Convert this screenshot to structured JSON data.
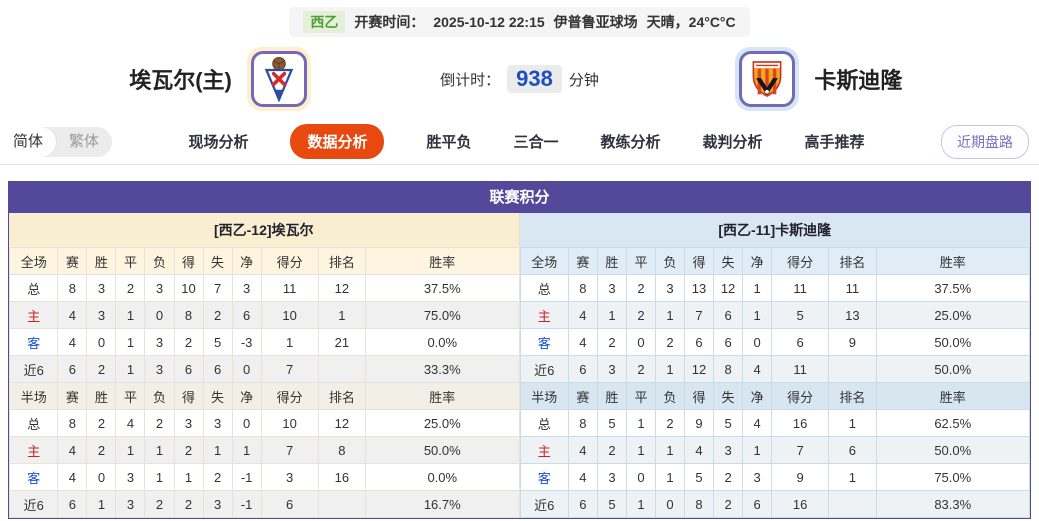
{
  "top_bar": {
    "league": "西乙",
    "kickoff_label": "开赛时间：",
    "kickoff_time": "2025-10-12 22:15",
    "venue": "伊普鲁亚球场",
    "weather": "天晴，24°C°C"
  },
  "teams": {
    "home": {
      "name": "埃瓦尔(主)"
    },
    "away": {
      "name": "卡斯迪隆"
    }
  },
  "countdown": {
    "label": "倒计时：",
    "value": "938",
    "unit": "分钟"
  },
  "lang_toggle": {
    "simplified": "简体",
    "traditional": "繁体"
  },
  "nav": {
    "tabs": [
      {
        "label": "现场分析",
        "active": false
      },
      {
        "label": "数据分析",
        "active": true
      },
      {
        "label": "胜平负",
        "active": false
      },
      {
        "label": "三合一",
        "active": false
      },
      {
        "label": "教练分析",
        "active": false
      },
      {
        "label": "裁判分析",
        "active": false
      },
      {
        "label": "高手推荐",
        "active": false
      }
    ],
    "recent_button": "近期盘路"
  },
  "panel": {
    "title": "联赛积分",
    "home": {
      "subtitle": "[西乙-12]埃瓦尔",
      "full_header": [
        "全场",
        "赛",
        "胜",
        "平",
        "负",
        "得",
        "失",
        "净",
        "得分",
        "排名",
        "胜率"
      ],
      "full_rows": [
        [
          "总",
          "8",
          "3",
          "2",
          "3",
          "10",
          "7",
          "3",
          "11",
          "12",
          "37.5%"
        ],
        [
          "主",
          "4",
          "3",
          "1",
          "0",
          "8",
          "2",
          "6",
          "10",
          "1",
          "75.0%"
        ],
        [
          "客",
          "4",
          "0",
          "1",
          "3",
          "2",
          "5",
          "-3",
          "1",
          "21",
          "0.0%"
        ],
        [
          "近6",
          "6",
          "2",
          "1",
          "3",
          "6",
          "6",
          "0",
          "7",
          "",
          "33.3%"
        ]
      ],
      "half_header": [
        "半场",
        "赛",
        "胜",
        "平",
        "负",
        "得",
        "失",
        "净",
        "得分",
        "排名",
        "胜率"
      ],
      "half_rows": [
        [
          "总",
          "8",
          "2",
          "4",
          "2",
          "3",
          "3",
          "0",
          "10",
          "12",
          "25.0%"
        ],
        [
          "主",
          "4",
          "2",
          "1",
          "1",
          "2",
          "1",
          "1",
          "7",
          "8",
          "50.0%"
        ],
        [
          "客",
          "4",
          "0",
          "3",
          "1",
          "1",
          "2",
          "-1",
          "3",
          "16",
          "0.0%"
        ],
        [
          "近6",
          "6",
          "1",
          "3",
          "2",
          "2",
          "3",
          "-1",
          "6",
          "",
          "16.7%"
        ]
      ]
    },
    "away": {
      "subtitle": "[西乙-11]卡斯迪隆",
      "full_header": [
        "全场",
        "赛",
        "胜",
        "平",
        "负",
        "得",
        "失",
        "净",
        "得分",
        "排名",
        "胜率"
      ],
      "full_rows": [
        [
          "总",
          "8",
          "3",
          "2",
          "3",
          "13",
          "12",
          "1",
          "11",
          "11",
          "37.5%"
        ],
        [
          "主",
          "4",
          "1",
          "2",
          "1",
          "7",
          "6",
          "1",
          "5",
          "13",
          "25.0%"
        ],
        [
          "客",
          "4",
          "2",
          "0",
          "2",
          "6",
          "6",
          "0",
          "6",
          "9",
          "50.0%"
        ],
        [
          "近6",
          "6",
          "3",
          "2",
          "1",
          "12",
          "8",
          "4",
          "11",
          "",
          "50.0%"
        ]
      ],
      "half_header": [
        "半场",
        "赛",
        "胜",
        "平",
        "负",
        "得",
        "失",
        "净",
        "得分",
        "排名",
        "胜率"
      ],
      "half_rows": [
        [
          "总",
          "8",
          "5",
          "1",
          "2",
          "9",
          "5",
          "4",
          "16",
          "1",
          "62.5%"
        ],
        [
          "主",
          "4",
          "2",
          "1",
          "1",
          "4",
          "3",
          "1",
          "7",
          "6",
          "50.0%"
        ],
        [
          "客",
          "4",
          "3",
          "0",
          "1",
          "5",
          "2",
          "3",
          "9",
          "1",
          "75.0%"
        ],
        [
          "近6",
          "6",
          "5",
          "1",
          "0",
          "8",
          "2",
          "6",
          "16",
          "",
          "83.3%"
        ]
      ]
    }
  },
  "colors": {
    "accent_purple": "#54489a",
    "active_tab_orange": "#e8490f",
    "countdown_blue": "#1d4fc0",
    "league_badge_green": "#4f9d3c",
    "home_header_cream": "#faeed0",
    "away_header_blue": "#d9e7f3",
    "home_label_red": "#cc2222",
    "away_label_blue": "#1a4fd0"
  }
}
